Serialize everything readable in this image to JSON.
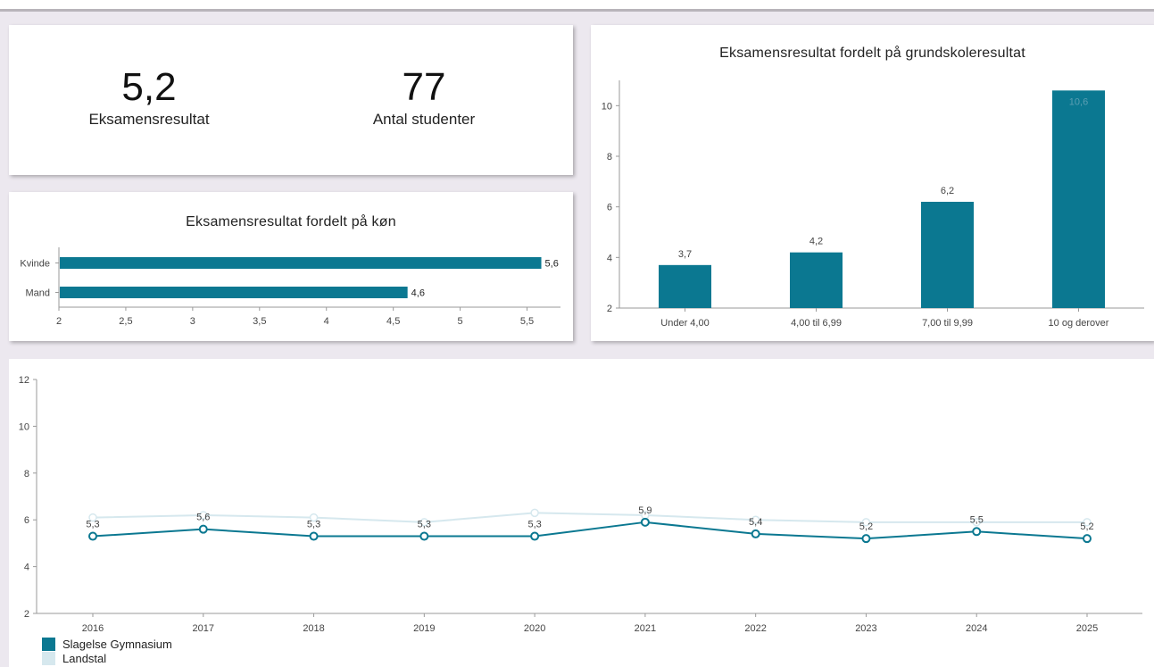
{
  "kpis": [
    {
      "value": "5,2",
      "label": "Eksamensresultat"
    },
    {
      "value": "77",
      "label": "Antal studenter"
    }
  ],
  "colors": {
    "primary": "#0b7891",
    "secondary": "#d6e8ee",
    "axis": "#9a9a9a"
  },
  "chart_data": [
    {
      "type": "bar",
      "orientation": "horizontal",
      "title": "Eksamensresultat fordelt på køn",
      "categories": [
        "Kvinde",
        "Mand"
      ],
      "values": [
        5.6,
        4.6
      ],
      "value_labels": [
        "5,6",
        "4,6"
      ],
      "xlim": [
        2,
        5.75
      ],
      "ticks": [
        2,
        2.5,
        3,
        3.5,
        4,
        4.5,
        5,
        5.5
      ],
      "tick_labels": [
        "2",
        "2,5",
        "3",
        "3,5",
        "4",
        "4,5",
        "5",
        "5,5"
      ],
      "grid": false
    },
    {
      "type": "bar",
      "title": "Eksamensresultat fordelt på grundskoleresultat",
      "categories": [
        "Under 4,00",
        "4,00 til 6,99",
        "7,00 til 9,99",
        "10 og derover"
      ],
      "values": [
        3.7,
        4.2,
        6.2,
        10.6
      ],
      "value_labels": [
        "3,7",
        "4,2",
        "6,2",
        "10,6"
      ],
      "ylim": [
        2,
        11
      ],
      "ticks": [
        2,
        4,
        6,
        8,
        10
      ],
      "tick_labels": [
        "2",
        "4",
        "6",
        "8",
        "10"
      ],
      "grid": false
    },
    {
      "type": "line",
      "x": [
        "2016",
        "2017",
        "2018",
        "2019",
        "2020",
        "2021",
        "2022",
        "2023",
        "2024",
        "2025"
      ],
      "series": [
        {
          "name": "Slagelse Gymnasium",
          "values": [
            5.3,
            5.6,
            5.3,
            5.3,
            5.3,
            5.9,
            5.4,
            5.2,
            5.5,
            5.2
          ],
          "value_labels": [
            "5,3",
            "5,6",
            "5,3",
            "5,3",
            "5,3",
            "5,9",
            "5,4",
            "5,2",
            "5,5",
            "5,2"
          ]
        },
        {
          "name": "Landstal",
          "values": [
            6.1,
            6.2,
            6.1,
            5.9,
            6.3,
            6.2,
            6.0,
            5.9,
            5.9,
            5.9
          ]
        }
      ],
      "ylim": [
        2,
        12
      ],
      "ticks": [
        2,
        4,
        6,
        8,
        10,
        12
      ],
      "tick_labels": [
        "2",
        "4",
        "6",
        "8",
        "10",
        "12"
      ],
      "legend_position": "bottom-left",
      "grid": false
    }
  ]
}
